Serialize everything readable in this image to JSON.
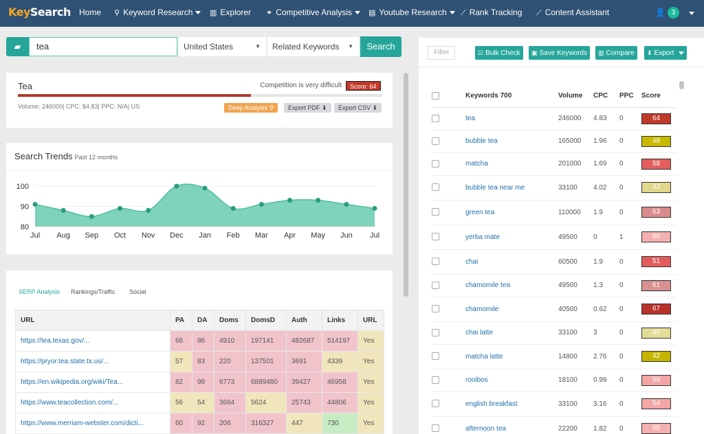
{
  "nav": {
    "logo_a": "Key",
    "logo_b": "Search",
    "items": [
      {
        "label": "Home",
        "icon": "",
        "caret": false,
        "x": 115
      },
      {
        "label": "Keyword Research",
        "icon": "🔍",
        "caret": true
      },
      {
        "label": "Explorer",
        "icon": "bar-chart-icon",
        "caret": false
      },
      {
        "label": "Competitive Analysis",
        "icon": "link-icon",
        "caret": true
      },
      {
        "label": "Youtube Research",
        "icon": "film-icon",
        "caret": true
      },
      {
        "label": "Rank Tracking",
        "icon": "line-chart-icon",
        "caret": false
      },
      {
        "label": "Content Assistant",
        "icon": "area-chart-icon",
        "caret": false
      }
    ],
    "notifications": "3"
  },
  "search": {
    "query": "tea",
    "country": "United States",
    "mode": "Related Keywords",
    "button": "Search"
  },
  "summary": {
    "keyword": "Tea",
    "competition": "Competition is very difficult",
    "score": "Score: 64",
    "score_value": 64,
    "meta": "Volume: 246000| CPC: $4.83| PPC: N/A| US",
    "deep": "Deep Analysis",
    "pdf": "Export PDF",
    "csv": "Export CSV"
  },
  "trends": {
    "title": "Search Trends",
    "subtitle": "Past 12 months"
  },
  "chart_data": {
    "type": "area",
    "categories": [
      "Jul",
      "Aug",
      "Sep",
      "Oct",
      "Nov",
      "Dec",
      "Jan",
      "Feb",
      "Mar",
      "Apr",
      "May",
      "Jun",
      "Jul"
    ],
    "values": [
      91,
      88,
      85,
      89,
      88,
      100,
      99,
      89,
      91,
      93,
      93,
      91,
      89
    ],
    "yticks": [
      80,
      90,
      100
    ],
    "ylim": [
      80,
      100
    ],
    "color": "#7fd2bc",
    "line_color": "#4fbfa0"
  },
  "serp": {
    "tabs": [
      "SERP Analysis",
      "Rankings/Traffic",
      "Social"
    ],
    "columns": [
      "URL",
      "PA",
      "DA",
      "Doms",
      "DomsD",
      "Auth",
      "Links",
      "URL"
    ],
    "rows": [
      {
        "url": "https://tea.texas.gov/...",
        "pa": "66",
        "da": "86",
        "doms": "4910",
        "domsd": "197141",
        "auth": "482687",
        "links": "514197",
        "yes": "Yes",
        "c": [
          "red",
          "red",
          "red",
          "red",
          "red",
          "red",
          "yel"
        ]
      },
      {
        "url": "https://pryor.tea.state.tx.us/...",
        "pa": "57",
        "da": "83",
        "doms": "220",
        "domsd": "137501",
        "auth": "3691",
        "links": "4339",
        "yes": "Yes",
        "c": [
          "yel",
          "red",
          "red",
          "red",
          "red",
          "yel",
          "yel"
        ]
      },
      {
        "url": "https://en.wikipedia.org/wiki/Tea...",
        "pa": "82",
        "da": "98",
        "doms": "6773",
        "domsd": "6889480",
        "auth": "39427",
        "links": "46958",
        "yes": "Yes",
        "c": [
          "red",
          "red",
          "red",
          "red",
          "red",
          "red",
          "yel"
        ]
      },
      {
        "url": "https://www.teacollection.com/...",
        "pa": "56",
        "da": "54",
        "doms": "3664",
        "domsd": "5624",
        "auth": "25743",
        "links": "44806",
        "yes": "Yes",
        "c": [
          "yel",
          "yel",
          "red",
          "yel",
          "red",
          "red",
          "yel"
        ]
      },
      {
        "url": "https://www.merriam-webster.com/dicti...",
        "pa": "60",
        "da": "92",
        "doms": "206",
        "domsd": "316327",
        "auth": "447",
        "links": "730",
        "yes": "Yes",
        "c": [
          "red",
          "red",
          "red",
          "red",
          "yel",
          "grn",
          "yel"
        ]
      }
    ]
  },
  "right": {
    "filter": "Filter",
    "buttons": [
      "Bulk Check",
      "Save Keywords",
      "Compare",
      "Export"
    ],
    "columns": [
      "Keywords 700",
      "Volume",
      "CPC",
      "PPC",
      "Score"
    ],
    "rows": [
      {
        "kw": "tea",
        "vol": "246000",
        "cpc": "4.83",
        "ppc": "0",
        "score": "64",
        "color": "#c0392b"
      },
      {
        "kw": "bubble tea",
        "vol": "165000",
        "cpc": "1.96",
        "ppc": "0",
        "score": "48",
        "color": "#c9b800"
      },
      {
        "kw": "matcha",
        "vol": "201000",
        "cpc": "1.69",
        "ppc": "0",
        "score": "58",
        "color": "#e35d5d"
      },
      {
        "kw": "bubble tea near me",
        "vol": "33100",
        "cpc": "4.02",
        "ppc": "0",
        "score": "43",
        "color": "#e2d68c"
      },
      {
        "kw": "green tea",
        "vol": "110000",
        "cpc": "1.9",
        "ppc": "0",
        "score": "63",
        "color": "#da8a8a"
      },
      {
        "kw": "yerba mate",
        "vol": "49500",
        "cpc": "0",
        "ppc": "1",
        "score": "60",
        "color": "#f4b0b0"
      },
      {
        "kw": "chai",
        "vol": "60500",
        "cpc": "1.9",
        "ppc": "0",
        "score": "51",
        "color": "#e35d5d"
      },
      {
        "kw": "chamomile tea",
        "vol": "49500",
        "cpc": "1.3",
        "ppc": "0",
        "score": "61",
        "color": "#d99090"
      },
      {
        "kw": "chamomile",
        "vol": "40500",
        "cpc": "0.62",
        "ppc": "0",
        "score": "67",
        "color": "#b8322a"
      },
      {
        "kw": "chai latte",
        "vol": "33100",
        "cpc": "3",
        "ppc": "0",
        "score": "45",
        "color": "#e3dc96"
      },
      {
        "kw": "matcha latte",
        "vol": "14800",
        "cpc": "2.76",
        "ppc": "0",
        "score": "42",
        "color": "#c6b400"
      },
      {
        "kw": "rooibos",
        "vol": "18100",
        "cpc": "0.99",
        "ppc": "0",
        "score": "59",
        "color": "#f4a6a6"
      },
      {
        "kw": "english breakfast",
        "vol": "33100",
        "cpc": "3.16",
        "ppc": "0",
        "score": "54",
        "color": "#f4a6a6"
      },
      {
        "kw": "afternoon tea",
        "vol": "22200",
        "cpc": "1.82",
        "ppc": "0",
        "score": "55",
        "color": "#f4b0b0"
      }
    ]
  }
}
